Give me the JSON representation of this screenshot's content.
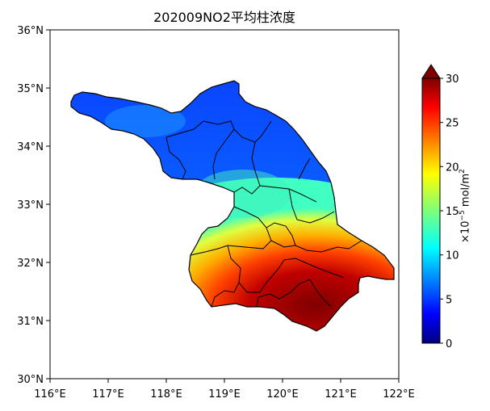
{
  "title": "202009NO2平均柱浓度",
  "map": {
    "x_ticks": [
      "116°E",
      "117°E",
      "118°E",
      "119°E",
      "120°E",
      "121°E",
      "122°E"
    ],
    "y_ticks": [
      "36°N",
      "35°N",
      "34°N",
      "33°N",
      "32°N",
      "31°N",
      "30°N"
    ],
    "lon_range": [
      116,
      122
    ],
    "lat_range": [
      30,
      36
    ]
  },
  "colorbar": {
    "min": 0,
    "max": 30,
    "ticks": [
      "0",
      "5",
      "10",
      "15",
      "20",
      "25",
      "30"
    ],
    "unit_prefix": "×10",
    "unit_exp": "−5",
    "unit_mid": " mol/m",
    "unit_sup": "2",
    "extend": "max",
    "colormap": "jet"
  },
  "colors": {
    "low": "#0a3aff",
    "mid": "#18d8f0",
    "high": "#8b0000"
  }
}
